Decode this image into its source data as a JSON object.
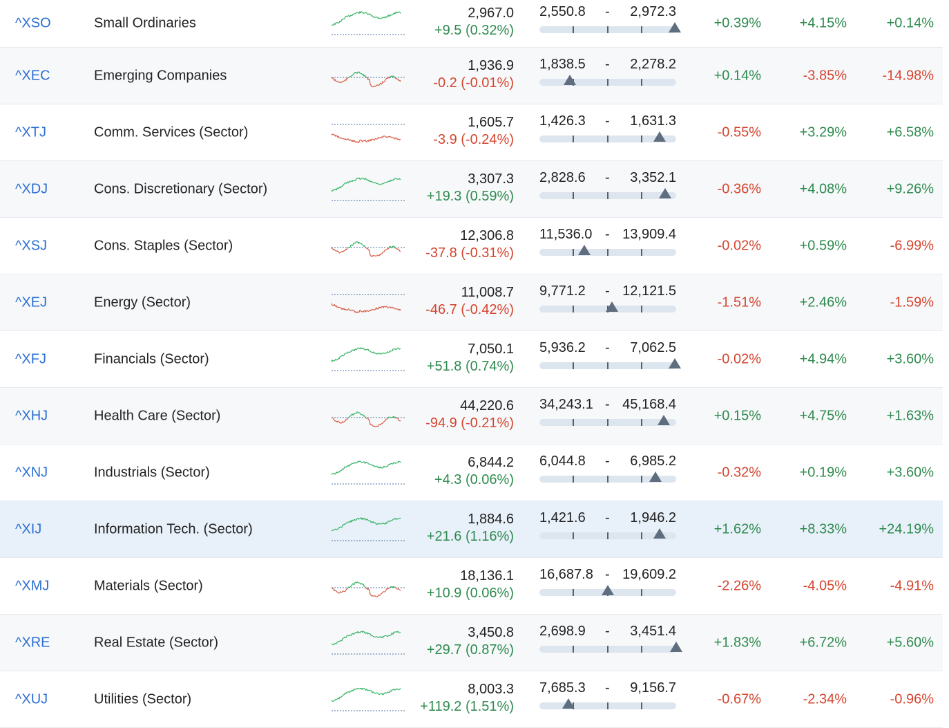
{
  "colors": {
    "positive": "#2e8a4e",
    "negative": "#d5452f",
    "symbol": "#2a6ed2",
    "highlight_row": "#e8f0f9"
  },
  "rows": [
    {
      "symbol": "^XSO",
      "name": "Small Ordinaries",
      "price": "2,967.0",
      "change": "+9.5 (0.32%)",
      "change_dir": "pos",
      "low": "2,550.8",
      "sep": "-",
      "high": "2,972.3",
      "range_position": 0.99,
      "spark_trend": "up",
      "p1": "+0.39%",
      "p2": "+4.15%",
      "p3": "+0.14%"
    },
    {
      "symbol": "^XEC",
      "name": "Emerging Companies",
      "price": "1,936.9",
      "change": "-0.2 (-0.01%)",
      "change_dir": "neg",
      "low": "1,838.5",
      "sep": "-",
      "high": "2,278.2",
      "range_position": 0.22,
      "spark_trend": "mixed",
      "p1": "+0.14%",
      "p2": "-3.85%",
      "p3": "-14.98%"
    },
    {
      "symbol": "^XTJ",
      "name": "Comm. Services (Sector)",
      "price": "1,605.7",
      "change": "-3.9 (-0.24%)",
      "change_dir": "neg",
      "low": "1,426.3",
      "sep": "-",
      "high": "1,631.3",
      "range_position": 0.88,
      "spark_trend": "down",
      "p1": "-0.55%",
      "p2": "+3.29%",
      "p3": "+6.58%"
    },
    {
      "symbol": "^XDJ",
      "name": "Cons. Discretionary (Sector)",
      "price": "3,307.3",
      "change": "+19.3 (0.59%)",
      "change_dir": "pos",
      "low": "2,828.6",
      "sep": "-",
      "high": "3,352.1",
      "range_position": 0.92,
      "spark_trend": "up",
      "p1": "-0.36%",
      "p2": "+4.08%",
      "p3": "+9.26%"
    },
    {
      "symbol": "^XSJ",
      "name": "Cons. Staples (Sector)",
      "price": "12,306.8",
      "change": "-37.8 (-0.31%)",
      "change_dir": "neg",
      "low": "11,536.0",
      "sep": "-",
      "high": "13,909.4",
      "range_position": 0.33,
      "spark_trend": "mixed",
      "p1": "-0.02%",
      "p2": "+0.59%",
      "p3": "-6.99%"
    },
    {
      "symbol": "^XEJ",
      "name": "Energy (Sector)",
      "price": "11,008.7",
      "change": "-46.7 (-0.42%)",
      "change_dir": "neg",
      "low": "9,771.2",
      "sep": "-",
      "high": "12,121.5",
      "range_position": 0.53,
      "spark_trend": "down",
      "p1": "-1.51%",
      "p2": "+2.46%",
      "p3": "-1.59%"
    },
    {
      "symbol": "^XFJ",
      "name": "Financials (Sector)",
      "price": "7,050.1",
      "change": "+51.8 (0.74%)",
      "change_dir": "pos",
      "low": "5,936.2",
      "sep": "-",
      "high": "7,062.5",
      "range_position": 0.99,
      "spark_trend": "up",
      "p1": "-0.02%",
      "p2": "+4.94%",
      "p3": "+3.60%"
    },
    {
      "symbol": "^XHJ",
      "name": "Health Care (Sector)",
      "price": "44,220.6",
      "change": "-94.9 (-0.21%)",
      "change_dir": "neg",
      "low": "34,243.1",
      "sep": "-",
      "high": "45,168.4",
      "range_position": 0.91,
      "spark_trend": "mixed",
      "p1": "+0.15%",
      "p2": "+4.75%",
      "p3": "+1.63%"
    },
    {
      "symbol": "^XNJ",
      "name": "Industrials (Sector)",
      "price": "6,844.2",
      "change": "+4.3 (0.06%)",
      "change_dir": "pos",
      "low": "6,044.8",
      "sep": "-",
      "high": "6,985.2",
      "range_position": 0.85,
      "spark_trend": "up",
      "p1": "-0.32%",
      "p2": "+0.19%",
      "p3": "+3.60%"
    },
    {
      "symbol": "^XIJ",
      "name": "Information Tech. (Sector)",
      "price": "1,884.6",
      "change": "+21.6 (1.16%)",
      "change_dir": "pos",
      "low": "1,421.6",
      "sep": "-",
      "high": "1,946.2",
      "range_position": 0.88,
      "spark_trend": "up",
      "p1": "+1.62%",
      "p2": "+8.33%",
      "p3": "+24.19%",
      "highlight": true
    },
    {
      "symbol": "^XMJ",
      "name": "Materials (Sector)",
      "price": "18,136.1",
      "change": "+10.9 (0.06%)",
      "change_dir": "pos",
      "low": "16,687.8",
      "sep": "-",
      "high": "19,609.2",
      "range_position": 0.5,
      "spark_trend": "mixed",
      "p1": "-2.26%",
      "p2": "-4.05%",
      "p3": "-4.91%"
    },
    {
      "symbol": "^XRE",
      "name": "Real Estate (Sector)",
      "price": "3,450.8",
      "change": "+29.7 (0.87%)",
      "change_dir": "pos",
      "low": "2,698.9",
      "sep": "-",
      "high": "3,451.4",
      "range_position": 1.0,
      "spark_trend": "up",
      "p1": "+1.83%",
      "p2": "+6.72%",
      "p3": "+5.60%"
    },
    {
      "symbol": "^XUJ",
      "name": "Utilities (Sector)",
      "price": "8,003.3",
      "change": "+119.2 (1.51%)",
      "change_dir": "pos",
      "low": "7,685.3",
      "sep": "-",
      "high": "9,156.7",
      "range_position": 0.21,
      "spark_trend": "up",
      "p1": "-0.67%",
      "p2": "-2.34%",
      "p3": "-0.96%"
    }
  ]
}
